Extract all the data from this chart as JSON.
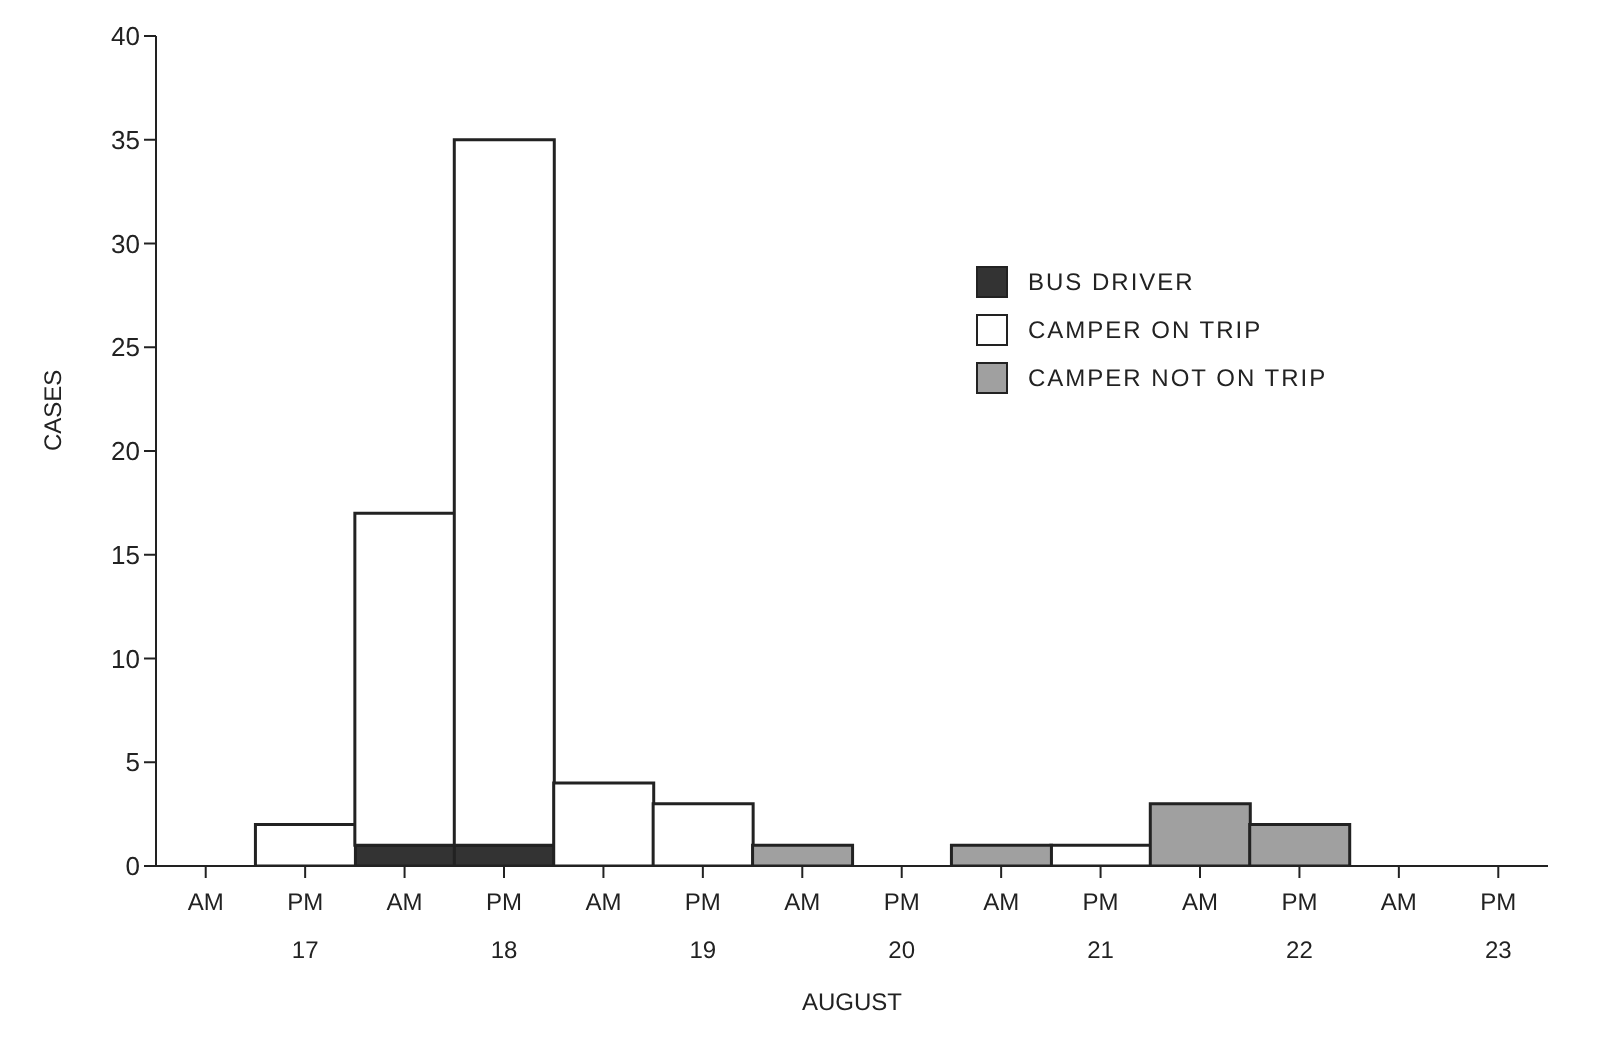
{
  "chart_data": {
    "type": "bar",
    "stacked": true,
    "xlabel": "AUGUST",
    "ylabel": "CASES",
    "categories": [
      "AM",
      "PM",
      "AM",
      "PM",
      "AM",
      "PM",
      "AM",
      "PM",
      "AM",
      "PM",
      "AM",
      "PM",
      "AM",
      "PM"
    ],
    "series": [
      {
        "name": "BUS DRIVER",
        "color": "#333333",
        "values": [
          0,
          0,
          1,
          1,
          0,
          0,
          0,
          0,
          0,
          0,
          0,
          0,
          0,
          0
        ]
      },
      {
        "name": "CAMPER ON TRIP",
        "color": "#ffffff",
        "values": [
          0,
          2,
          16,
          34,
          4,
          3,
          0,
          0,
          0,
          1,
          0,
          0,
          0,
          0
        ]
      },
      {
        "name": "CAMPER NOT ON TRIP",
        "color": "#a0a0a0",
        "values": [
          0,
          0,
          0,
          0,
          0,
          0,
          1,
          0,
          1,
          0,
          3,
          2,
          0,
          0
        ]
      }
    ],
    "annotations": [
      "17",
      "18",
      "19",
      "20",
      "21",
      "22",
      "23"
    ],
    "ylim": [
      0,
      40
    ],
    "yticks": [
      0,
      5,
      10,
      15,
      20,
      25,
      30,
      35,
      40
    ],
    "grid": false,
    "legend": "top right"
  }
}
